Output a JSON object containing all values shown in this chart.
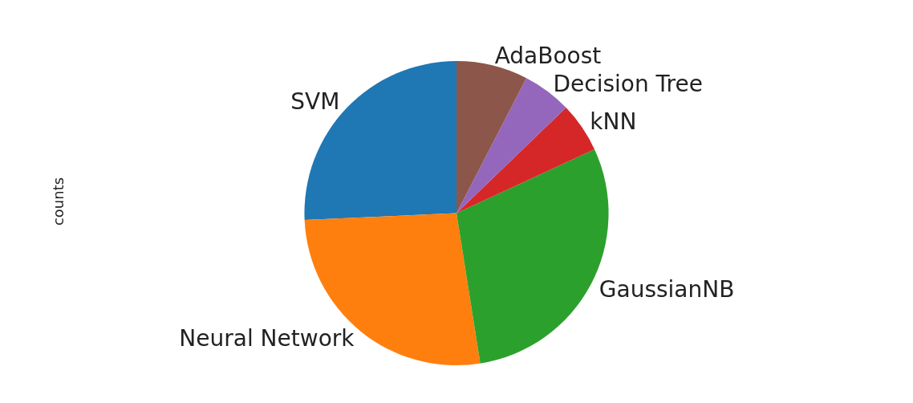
{
  "chart_data": {
    "type": "pie",
    "ylabel": "counts",
    "categories": [
      "SVM",
      "Neural Network",
      "GaussianNB",
      "kNN",
      "Decision Tree",
      "AdaBoost"
    ],
    "values": [
      25.7,
      26.8,
      29.4,
      5.3,
      5.2,
      7.6
    ],
    "colors": [
      "#1f77b4",
      "#ff7f0e",
      "#2ca02c",
      "#d62728",
      "#9467bd",
      "#8c564b"
    ],
    "legend": false
  }
}
